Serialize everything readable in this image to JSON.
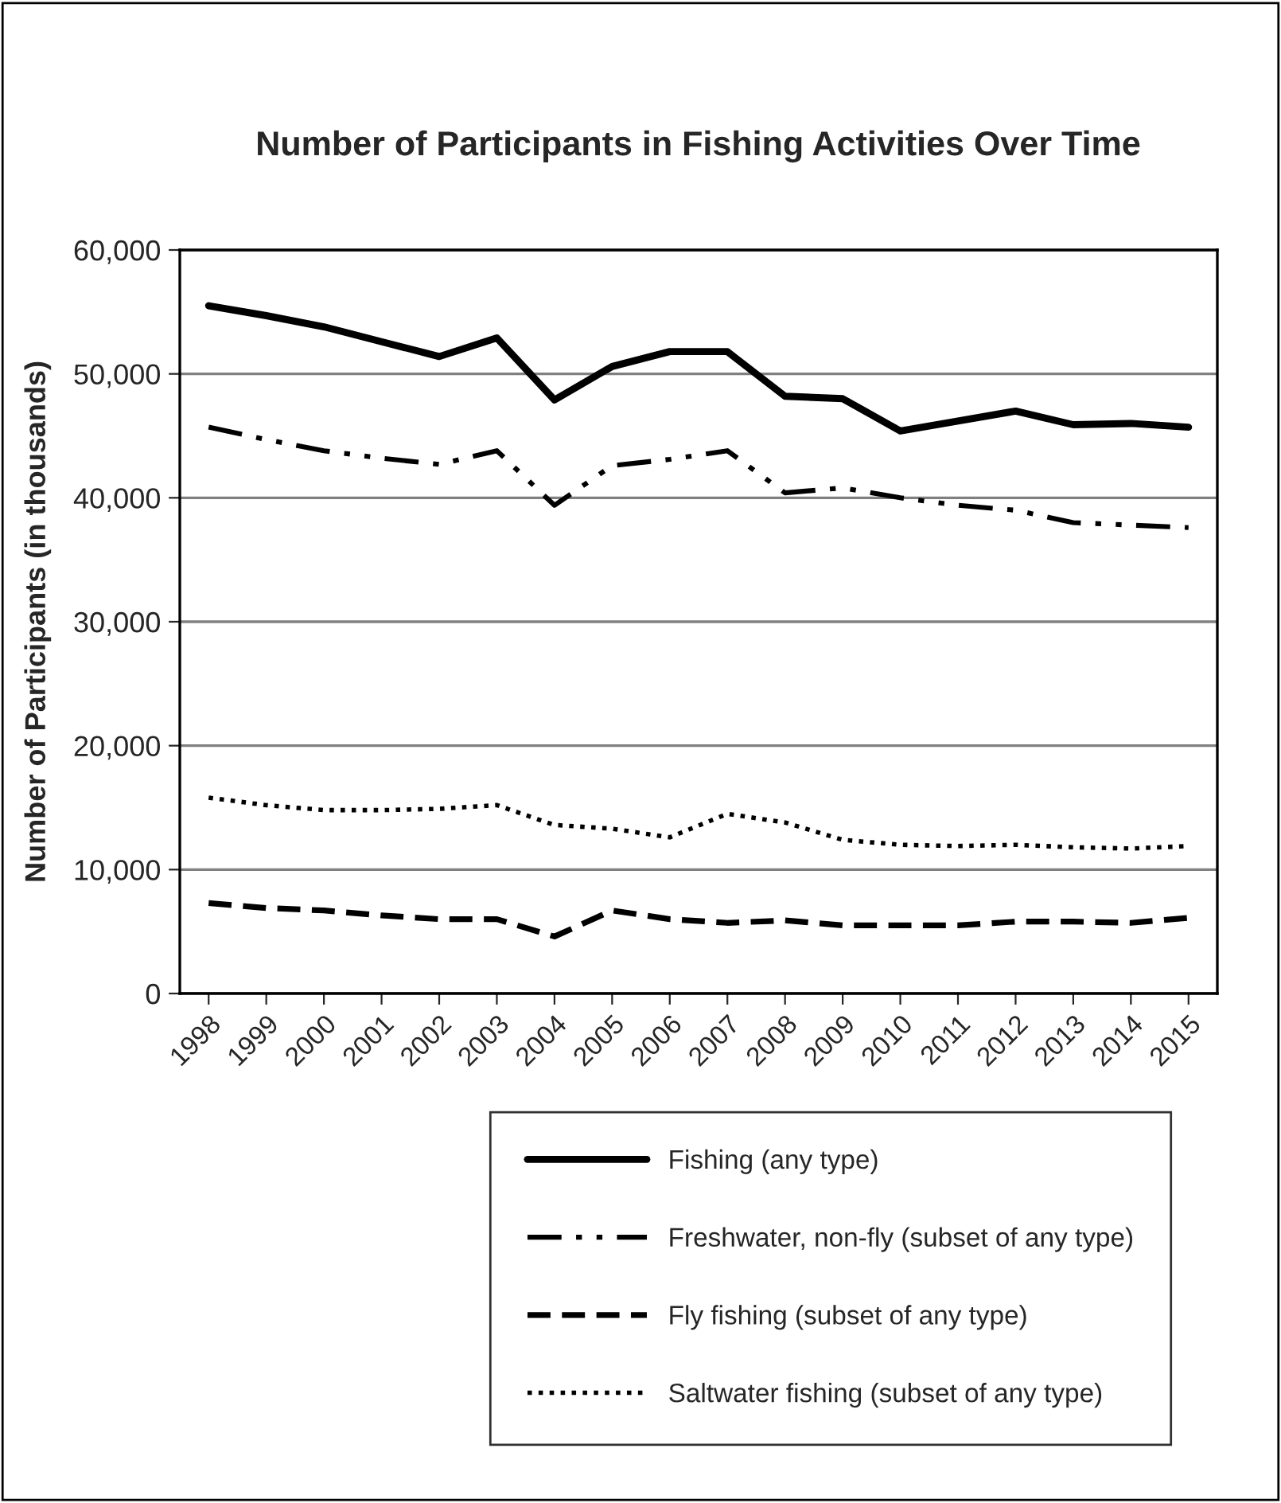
{
  "chart_data": {
    "type": "line",
    "title": "Number of Participants in Fishing Activities Over Time",
    "ylabel": "Number of Participants (in thousands)",
    "categories": [
      "1998",
      "1999",
      "2000",
      "2001",
      "2002",
      "2003",
      "2004",
      "2005",
      "2006",
      "2007",
      "2008",
      "2009",
      "2010",
      "2011",
      "2012",
      "2013",
      "2014",
      "2015"
    ],
    "series": [
      {
        "name": "Fishing (any type)",
        "color": "#000000",
        "line_style": "solid",
        "values": [
          55500,
          54700,
          53800,
          52600,
          51400,
          52900,
          47900,
          50600,
          51800,
          51800,
          48200,
          48000,
          45400,
          46200,
          47000,
          45900,
          46000,
          45700
        ]
      },
      {
        "name": "Freshwater, non-fly (subset of any type)",
        "color": "#000000",
        "line_style": "dashdotdot",
        "values": [
          45700,
          44700,
          43800,
          43200,
          42700,
          43800,
          39400,
          42600,
          43100,
          43800,
          40400,
          40800,
          40000,
          39400,
          39000,
          38000,
          37800,
          37600
        ]
      },
      {
        "name": "Fly fishing (subset of any type)",
        "color": "#000000",
        "line_style": "dashed",
        "values": [
          7300,
          6900,
          6700,
          6300,
          6000,
          6000,
          4600,
          6700,
          6000,
          5700,
          5900,
          5500,
          5500,
          5500,
          5800,
          5800,
          5700,
          6100
        ]
      },
      {
        "name": "Saltwater fishing (subset of any type)",
        "color": "#000000",
        "line_style": "dotted",
        "values": [
          15800,
          15200,
          14800,
          14800,
          14900,
          15200,
          13600,
          13300,
          12600,
          14500,
          13800,
          12400,
          12000,
          11900,
          12000,
          11800,
          11700,
          11900
        ]
      }
    ],
    "ylim": [
      0,
      60000
    ],
    "yticks": [
      {
        "value": 0,
        "label": "0"
      },
      {
        "value": 10000,
        "label": "10,000"
      },
      {
        "value": 20000,
        "label": "20,000"
      },
      {
        "value": 30000,
        "label": "30,000"
      },
      {
        "value": 40000,
        "label": "40,000"
      },
      {
        "value": 50000,
        "label": "50,000"
      },
      {
        "value": 60000,
        "label": "60,000"
      }
    ],
    "grid": "y",
    "legend": "bottom",
    "marker": "none"
  }
}
